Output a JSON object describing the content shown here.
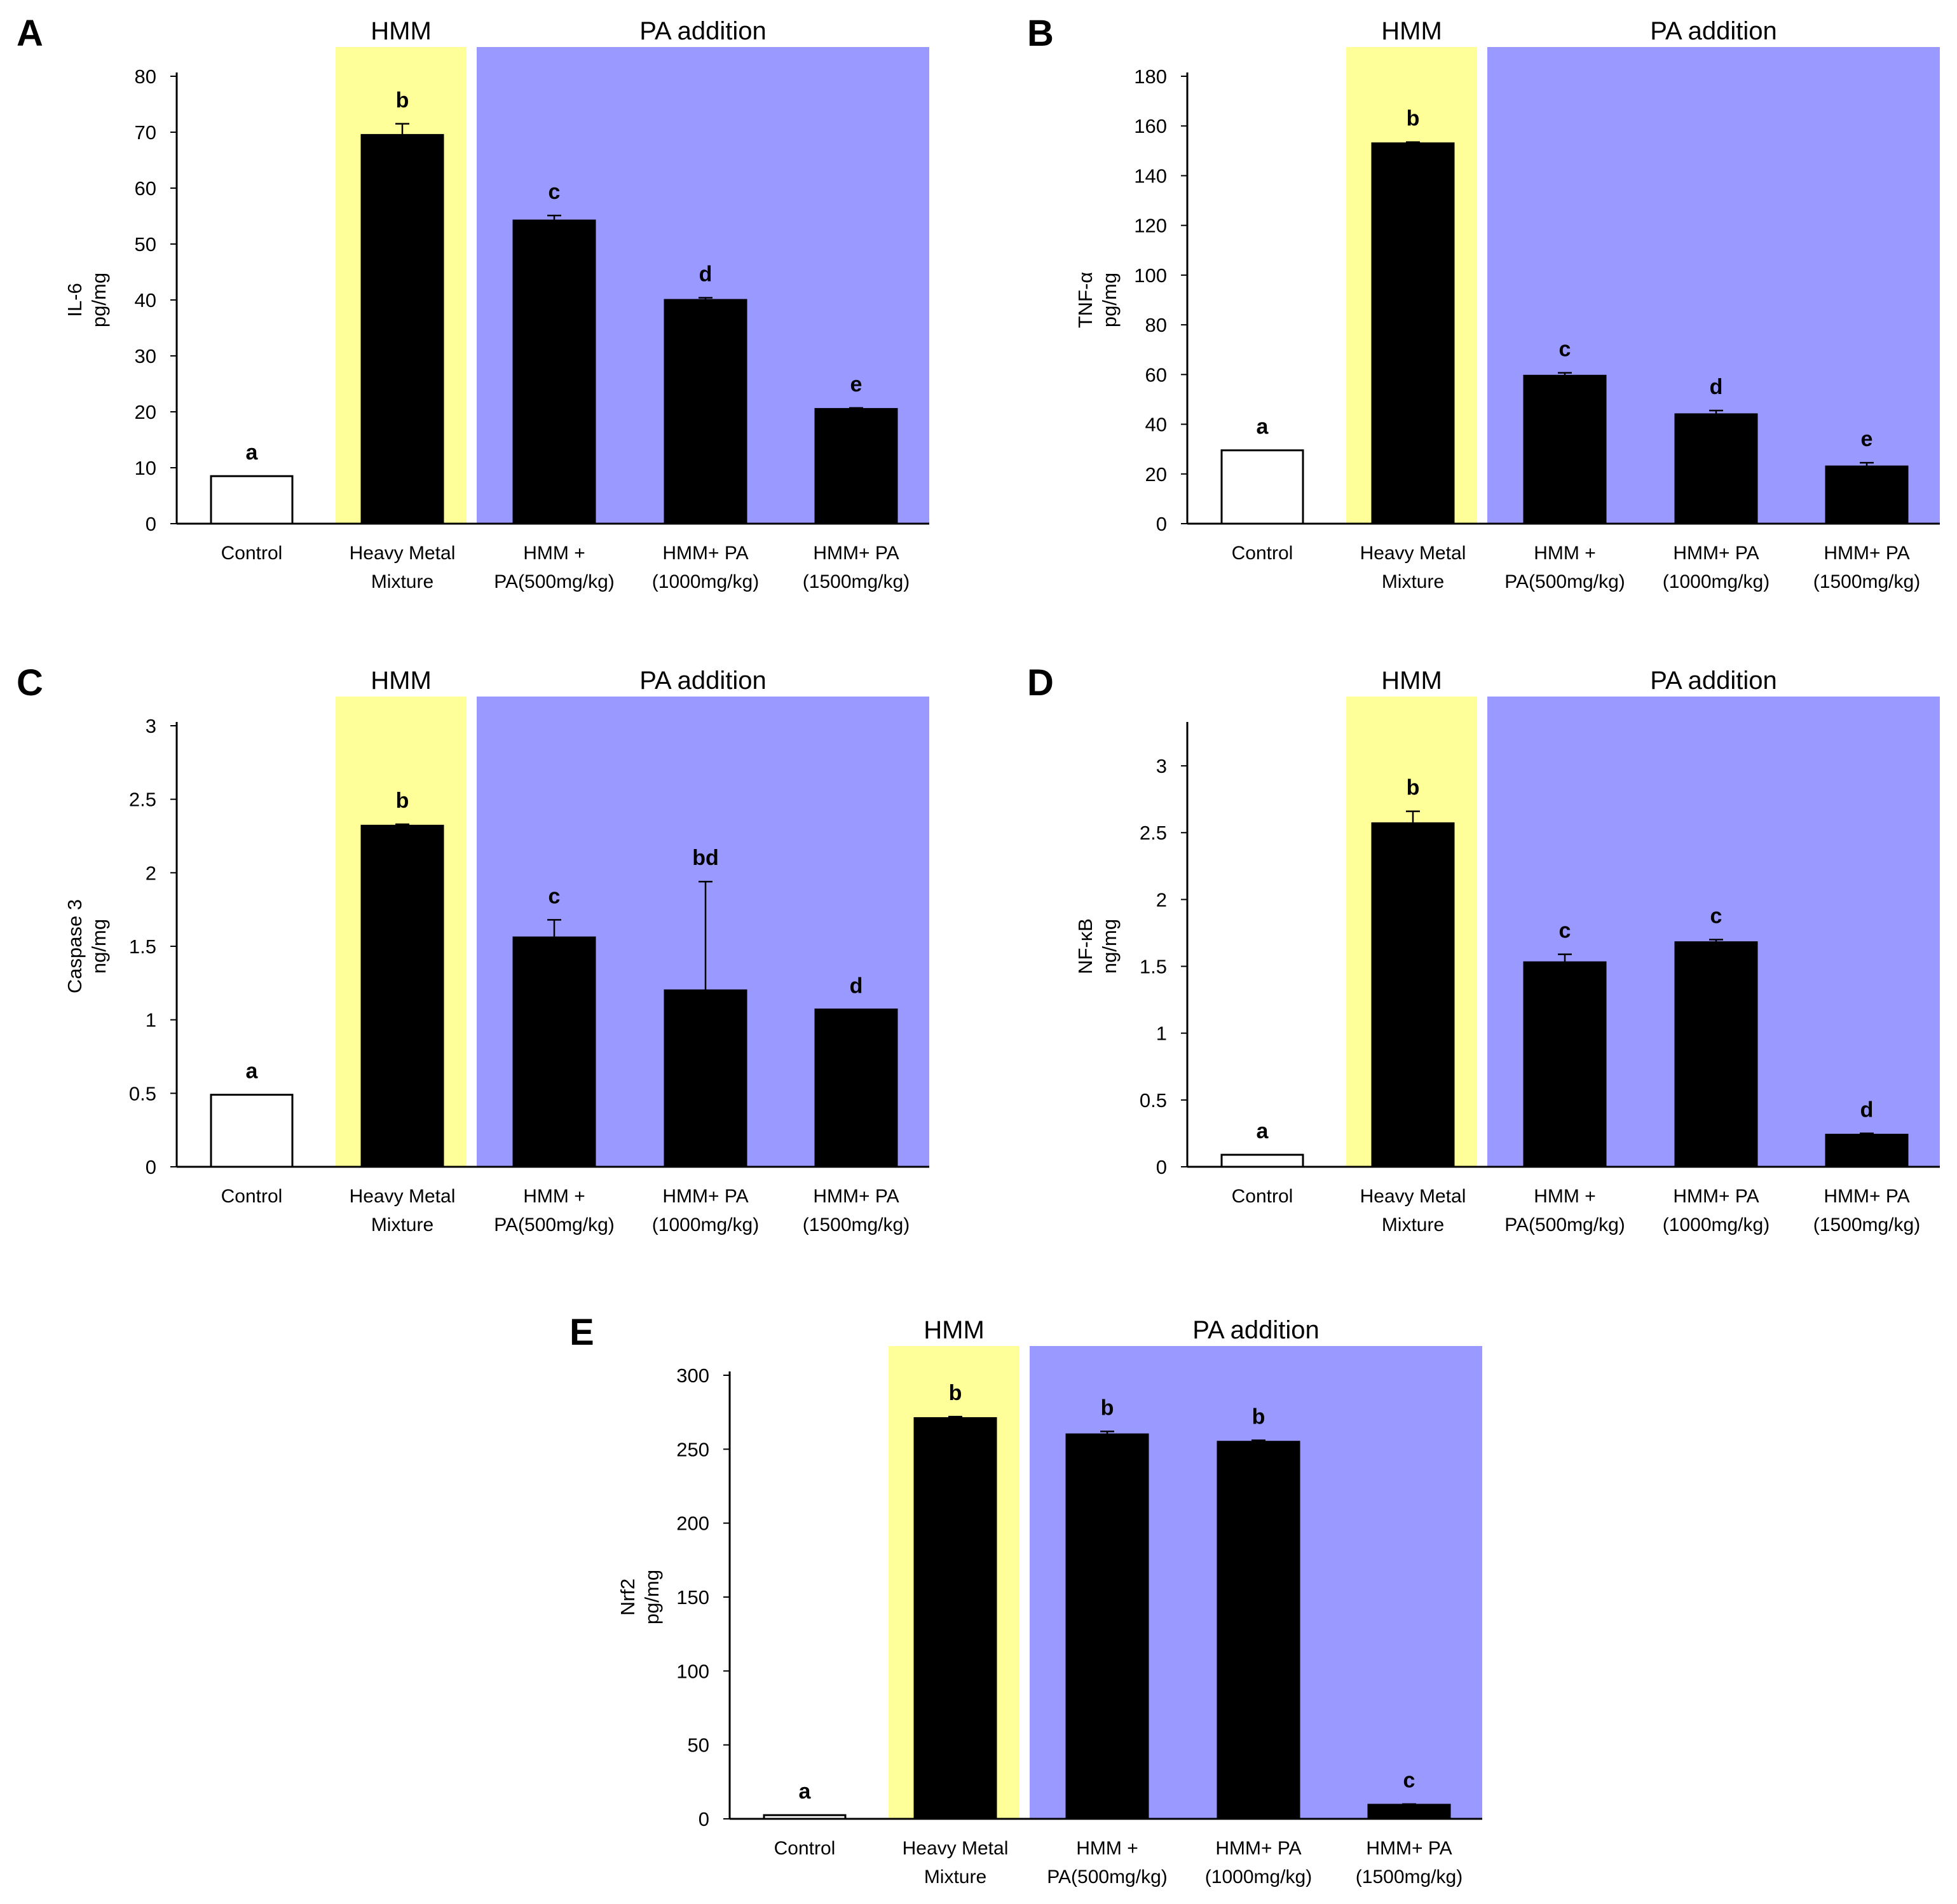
{
  "colors": {
    "hmm_band": "#ffff99",
    "pa_band": "#9999ff",
    "bar_fill": "#000000",
    "control_fill": "#ffffff"
  },
  "bands": {
    "hmm": "HMM",
    "pa": "PA addition"
  },
  "categories": [
    [
      "Control"
    ],
    [
      "Heavy Metal",
      "Mixture"
    ],
    [
      "HMM +",
      "PA(500mg/kg)"
    ],
    [
      "HMM+ PA",
      "(1000mg/kg)"
    ],
    [
      "HMM+ PA",
      "(1500mg/kg)"
    ]
  ],
  "chart_data": [
    {
      "panel": "A",
      "type": "bar",
      "ylabel": [
        "IL-6",
        "pg/mg"
      ],
      "ylim": [
        0,
        80
      ],
      "yticks": [
        0,
        10,
        20,
        30,
        40,
        50,
        60,
        70,
        80
      ],
      "values": [
        8.5,
        69.5,
        54.2,
        40.0,
        20.5
      ],
      "errors": [
        0,
        2.0,
        0.9,
        0.4,
        0.2
      ],
      "significance": [
        "a",
        "b",
        "c",
        "d",
        "e"
      ]
    },
    {
      "panel": "B",
      "type": "bar",
      "ylabel": [
        "TNF-α",
        "pg/mg"
      ],
      "ylim": [
        0,
        180
      ],
      "yticks": [
        0,
        20,
        40,
        60,
        80,
        100,
        120,
        140,
        160,
        180
      ],
      "values": [
        29.5,
        153,
        59.5,
        44,
        23
      ],
      "errors": [
        0,
        0.5,
        1.2,
        1.5,
        1.5
      ],
      "significance": [
        "a",
        "b",
        "c",
        "d",
        "e"
      ]
    },
    {
      "panel": "C",
      "type": "bar",
      "ylabel": [
        "Caspase 3",
        "ng/mg"
      ],
      "ylim": [
        0,
        3
      ],
      "yticks": [
        0,
        0.5,
        1,
        1.5,
        2,
        2.5,
        3
      ],
      "values": [
        0.49,
        2.32,
        1.56,
        1.2,
        1.07
      ],
      "errors": [
        0,
        0.01,
        0.12,
        0.74,
        0
      ],
      "significance": [
        "a",
        "b",
        "c",
        "bd",
        "d"
      ]
    },
    {
      "panel": "D",
      "type": "bar",
      "ylabel": [
        "NF-κB",
        "ng/mg"
      ],
      "ylim": [
        0,
        3.3
      ],
      "yticks": [
        0,
        0.5,
        1,
        1.5,
        2,
        2.5,
        3
      ],
      "values": [
        0.09,
        2.57,
        1.53,
        1.68,
        0.24
      ],
      "errors": [
        0,
        0.09,
        0.06,
        0.02,
        0.01
      ],
      "significance": [
        "a",
        "b",
        "c",
        "c",
        "d"
      ]
    },
    {
      "panel": "E",
      "type": "bar",
      "ylabel": [
        "Nrf2",
        "pg/mg"
      ],
      "ylim": [
        0,
        300
      ],
      "yticks": [
        0,
        50,
        100,
        150,
        200,
        250,
        300
      ],
      "values": [
        2.5,
        271,
        260,
        255,
        9.5
      ],
      "errors": [
        0,
        1,
        2,
        1,
        0.5
      ],
      "significance": [
        "a",
        "b",
        "b",
        "b",
        "c"
      ]
    }
  ]
}
